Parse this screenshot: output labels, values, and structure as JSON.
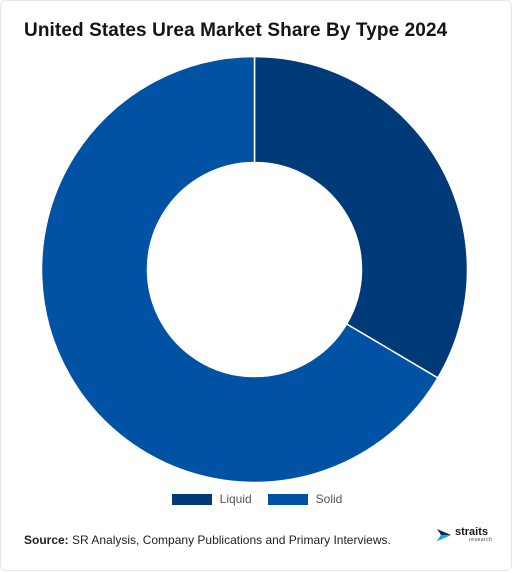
{
  "header": {
    "title": "United States Urea Market Share By Type 2024"
  },
  "chart_data": {
    "type": "pie",
    "variant": "donut",
    "categories": [
      "Liquid",
      "Solid"
    ],
    "values": [
      33.5,
      66.5
    ],
    "colors": [
      "#003a78",
      "#0052a5"
    ],
    "legend_position": "bottom-center"
  },
  "footer": {
    "source_label": "Source:",
    "source_text": " SR Analysis, Company Publications and Primary Interviews.",
    "logo_main": "straits",
    "logo_sub": "research"
  }
}
